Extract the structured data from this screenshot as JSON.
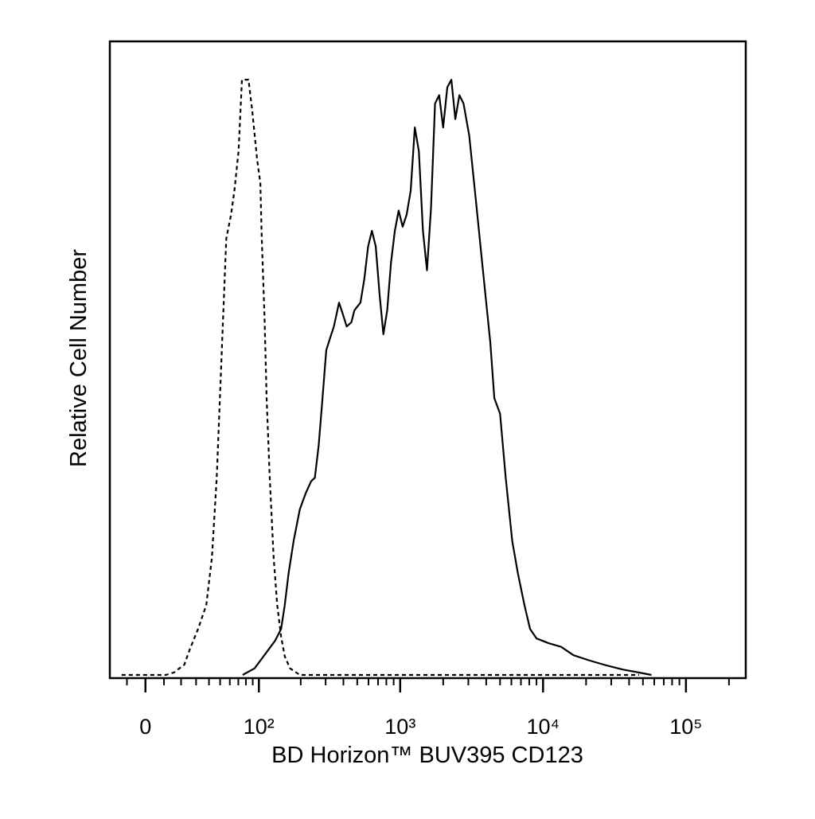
{
  "chart_data": {
    "type": "line",
    "xlabel": "BD Horizon™ BUV395 CD123",
    "ylabel": "Relative Cell Number",
    "xscale": "asinh",
    "xlim": [
      -20,
      262144
    ],
    "ylim": [
      0,
      106
    ],
    "xticks": [
      0,
      {
        "value": 100,
        "label": "10²"
      },
      {
        "value": 1000,
        "label": "10³"
      },
      {
        "value": 10000,
        "label": "10⁴"
      },
      {
        "value": 100000,
        "label": "10⁵"
      }
    ],
    "xminor_ticks": [
      -10,
      10,
      20,
      30,
      40,
      50,
      60,
      70,
      80,
      90,
      200,
      300,
      400,
      500,
      600,
      700,
      800,
      900,
      2000,
      3000,
      4000,
      5000,
      6000,
      7000,
      8000,
      9000,
      20000,
      30000,
      40000,
      50000,
      60000,
      70000,
      80000,
      90000,
      200000
    ],
    "series": [
      {
        "color": "#000000",
        "dash": true,
        "x": [
          -13,
          11,
          15.6,
          22,
          25.8,
          31.5,
          37.8,
          42.5,
          46.8,
          49.8,
          52.9,
          56.2,
          61.4,
          65.2,
          70.3,
          74.6,
          83.6,
          89.4,
          96.9,
          102.5,
          105,
          110,
          114,
          120,
          128,
          136,
          145,
          154,
          168,
          197,
          47000
        ],
        "values": [
          0,
          0,
          0.4,
          1.7,
          4.4,
          7.7,
          11.7,
          19.7,
          33.0,
          46.3,
          59.7,
          73.0,
          77.0,
          81.0,
          87.6,
          99.6,
          99.6,
          94.3,
          86.3,
          82.3,
          73.0,
          59.7,
          46.3,
          33.0,
          19.7,
          11.7,
          6.4,
          3.1,
          1.1,
          0,
          0
        ]
      },
      {
        "color": "#000000",
        "dash": false,
        "x": [
          75.6,
          93,
          113,
          131,
          145,
          154,
          164,
          178,
          197,
          217,
          237,
          252,
          268,
          285,
          303,
          322,
          343,
          373,
          397,
          422,
          455,
          478,
          527,
          561,
          596,
          634,
          674,
          717,
          763,
          811,
          863,
          918,
          976,
          1040,
          1110,
          1185,
          1266,
          1351,
          1443,
          1540,
          1644,
          1755,
          1874,
          2000,
          2136,
          2280,
          2434,
          2598,
          2775,
          3041,
          3377,
          3700,
          4003,
          4273,
          4562,
          5000,
          5480,
          6083,
          6668,
          7401,
          8115,
          9006,
          10970,
          13380,
          16320,
          21270,
          27700,
          36110,
          47040,
          57360
        ],
        "values": [
          0,
          1.1,
          3.7,
          5.7,
          7.7,
          11.7,
          17.0,
          22.4,
          27.7,
          30.4,
          32.4,
          33.0,
          38.4,
          46.3,
          54.3,
          56.3,
          58.3,
          62.3,
          60.3,
          58.3,
          59.0,
          61.0,
          62.3,
          66.3,
          71.7,
          74.3,
          71.7,
          63.7,
          57.0,
          61.0,
          69.0,
          74.3,
          77.7,
          75.0,
          77.0,
          81.0,
          91.6,
          87.6,
          74.3,
          67.7,
          78.3,
          95.6,
          97.0,
          91.6,
          98.3,
          99.6,
          93.0,
          97.0,
          95.6,
          90.3,
          79.7,
          70.3,
          62.3,
          55.7,
          46.3,
          43.7,
          33.0,
          22.4,
          17.0,
          11.7,
          7.7,
          6.1,
          5.3,
          4.7,
          3.3,
          2.4,
          1.6,
          0.9,
          0.4,
          0
        ]
      }
    ]
  }
}
